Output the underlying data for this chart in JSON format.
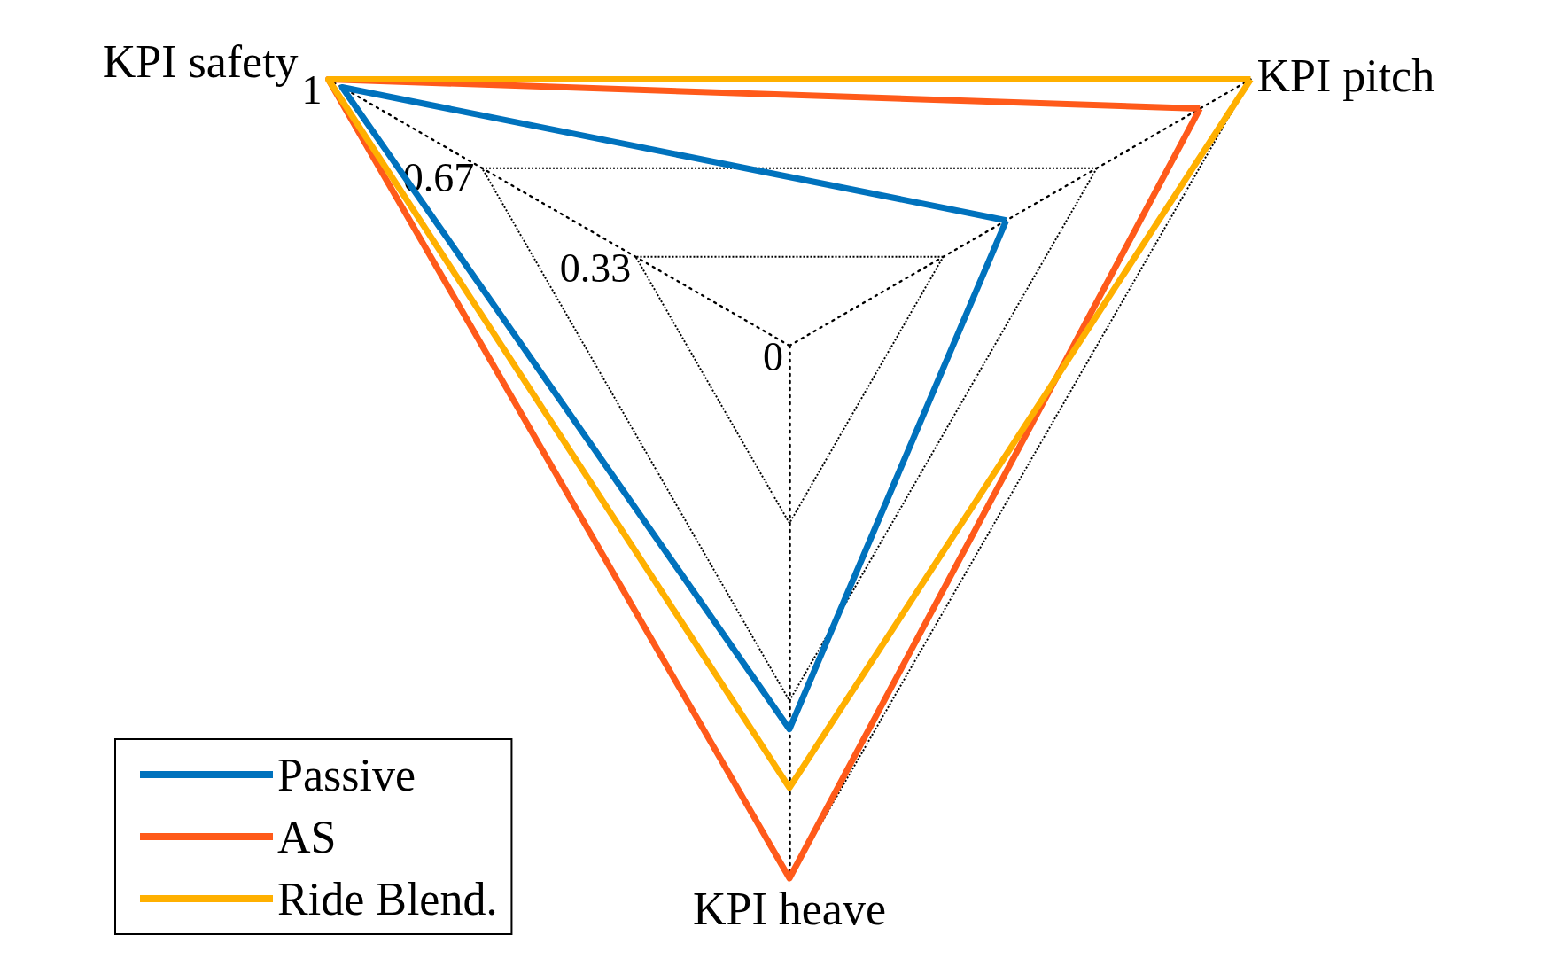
{
  "chart_data": {
    "type": "radar",
    "categories": [
      "KPI pitch",
      "KPI heave",
      "KPI safety"
    ],
    "series": [
      {
        "name": "Passive",
        "color": "#0072bd",
        "values": [
          0.47,
          0.72,
          0.97
        ]
      },
      {
        "name": "AS",
        "color": "#ff5a1a",
        "values": [
          0.89,
          1,
          1
        ]
      },
      {
        "name": "Ride Blend.",
        "color": "#ffb000",
        "values": [
          1,
          0.83,
          1
        ]
      }
    ],
    "ylim": [
      0,
      1
    ],
    "yticks": [
      0,
      0.33,
      0.67,
      1
    ],
    "legend": "bottom left",
    "line_style": "solid",
    "marker": "none"
  }
}
